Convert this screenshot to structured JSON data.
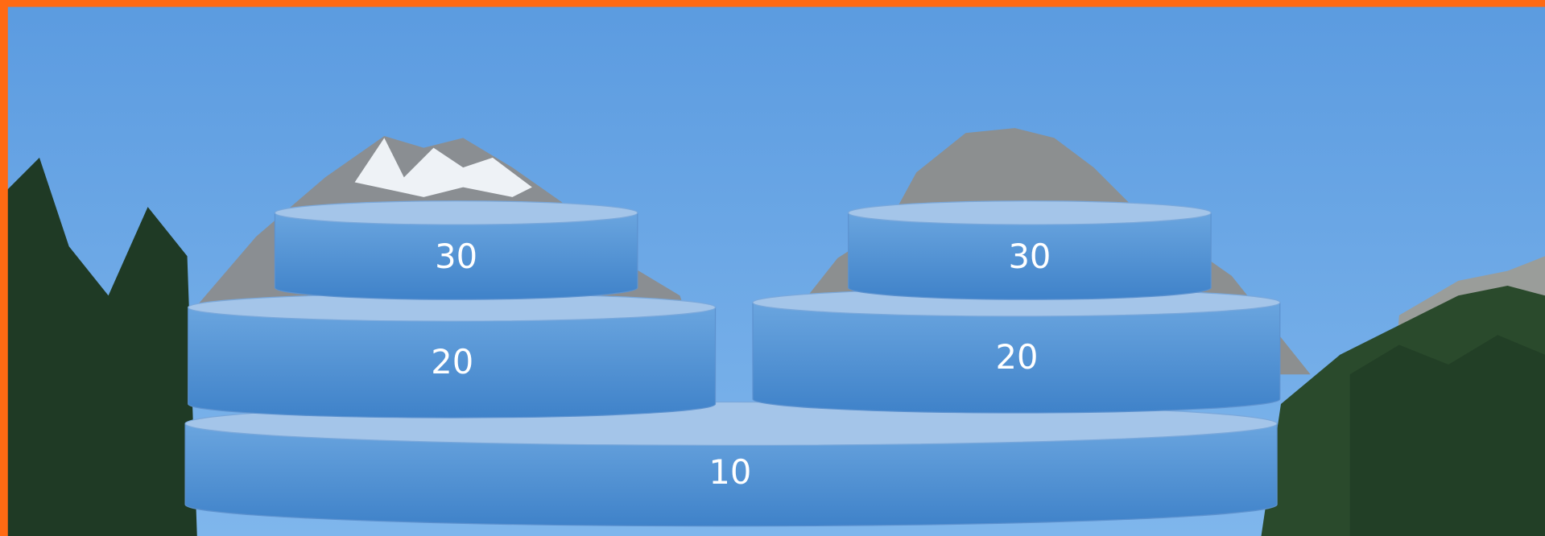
{
  "diagram": {
    "nodes": [
      {
        "label": "10"
      },
      {
        "label": "20"
      },
      {
        "label": "20"
      },
      {
        "label": "30"
      },
      {
        "label": "30"
      }
    ]
  }
}
